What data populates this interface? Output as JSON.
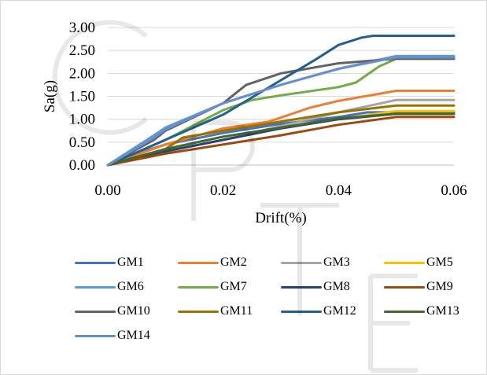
{
  "chart_data": {
    "type": "line",
    "title": "",
    "xlabel": "Drift(%)",
    "ylabel": "Sa(g)",
    "xlim": [
      0,
      0.06
    ],
    "ylim": [
      0,
      3.0
    ],
    "xticks": [
      0,
      0.02,
      0.04,
      0.06
    ],
    "xtick_labels": [
      "0.00",
      "0.02",
      "0.04",
      "0.06"
    ],
    "yticks": [
      0,
      0.5,
      1.0,
      1.5,
      2.0,
      2.5,
      3.0
    ],
    "ytick_labels": [
      "0.00",
      "0.50",
      "1.00",
      "1.50",
      "2.00",
      "2.50",
      "3.00"
    ],
    "grid": "horizontal",
    "legend_position": "bottom",
    "series": [
      {
        "name": "GM1",
        "color": "#4472C4",
        "x": [
          0,
          0.005,
          0.01,
          0.02,
          0.03,
          0.04,
          0.045,
          0.06
        ],
        "y": [
          0,
          0.25,
          0.45,
          0.7,
          0.9,
          1.05,
          1.15,
          1.15
        ]
      },
      {
        "name": "GM2",
        "color": "#ED7D31",
        "x": [
          0,
          0.01,
          0.02,
          0.028,
          0.035,
          0.04,
          0.05,
          0.06
        ],
        "y": [
          0,
          0.45,
          0.8,
          0.95,
          1.25,
          1.4,
          1.62,
          1.62
        ]
      },
      {
        "name": "GM3",
        "color": "#A5A5A5",
        "x": [
          0,
          0.01,
          0.02,
          0.03,
          0.04,
          0.05,
          0.06
        ],
        "y": [
          0,
          0.3,
          0.55,
          0.85,
          1.15,
          1.42,
          1.42
        ]
      },
      {
        "name": "GM5",
        "color": "#FFC000",
        "x": [
          0,
          0.01,
          0.02,
          0.03,
          0.04,
          0.05,
          0.06
        ],
        "y": [
          0,
          0.3,
          0.55,
          0.8,
          1.0,
          1.18,
          1.18
        ]
      },
      {
        "name": "GM6",
        "color": "#5B9BD5",
        "x": [
          0,
          0.008,
          0.01,
          0.02,
          0.03,
          0.04,
          0.05,
          0.06
        ],
        "y": [
          0,
          0.65,
          0.82,
          1.35,
          1.75,
          2.1,
          2.38,
          2.38
        ]
      },
      {
        "name": "GM7",
        "color": "#70AD47",
        "x": [
          0,
          0.01,
          0.02,
          0.025,
          0.03,
          0.04,
          0.043,
          0.047,
          0.05,
          0.06
        ],
        "y": [
          0,
          0.55,
          1.2,
          1.42,
          1.52,
          1.7,
          1.8,
          2.15,
          2.32,
          2.32
        ]
      },
      {
        "name": "GM8",
        "color": "#264478",
        "x": [
          0,
          0.01,
          0.02,
          0.03,
          0.04,
          0.05,
          0.06
        ],
        "y": [
          0,
          0.3,
          0.55,
          0.8,
          1.0,
          1.12,
          1.12
        ]
      },
      {
        "name": "GM9",
        "color": "#9E480E",
        "x": [
          0,
          0.01,
          0.02,
          0.03,
          0.04,
          0.05,
          0.06
        ],
        "y": [
          0,
          0.25,
          0.45,
          0.65,
          0.88,
          1.05,
          1.05
        ]
      },
      {
        "name": "GM10",
        "color": "#636363",
        "x": [
          0,
          0.008,
          0.01,
          0.02,
          0.022,
          0.024,
          0.03,
          0.04,
          0.05,
          0.06
        ],
        "y": [
          0,
          0.55,
          0.75,
          1.35,
          1.55,
          1.75,
          2.0,
          2.22,
          2.32,
          2.32
        ]
      },
      {
        "name": "GM11",
        "color": "#997300",
        "x": [
          0,
          0.01,
          0.013,
          0.02,
          0.03,
          0.04,
          0.05,
          0.06
        ],
        "y": [
          0,
          0.35,
          0.6,
          0.75,
          0.95,
          1.15,
          1.3,
          1.3
        ]
      },
      {
        "name": "GM12",
        "color": "#255E91",
        "x": [
          0,
          0.01,
          0.02,
          0.03,
          0.036,
          0.04,
          0.044,
          0.046,
          0.06
        ],
        "y": [
          0,
          0.55,
          1.1,
          1.85,
          2.3,
          2.62,
          2.78,
          2.82,
          2.82
        ]
      },
      {
        "name": "GM13",
        "color": "#43682B",
        "x": [
          0,
          0.01,
          0.02,
          0.03,
          0.04,
          0.05,
          0.06
        ],
        "y": [
          0,
          0.35,
          0.62,
          0.82,
          1.02,
          1.12,
          1.12
        ]
      },
      {
        "name": "GM14",
        "color": "#698ED0",
        "x": [
          0,
          0.008,
          0.01,
          0.02,
          0.03,
          0.04,
          0.05,
          0.06
        ],
        "y": [
          0,
          0.6,
          0.78,
          1.35,
          1.75,
          2.1,
          2.35,
          2.35
        ]
      }
    ]
  }
}
